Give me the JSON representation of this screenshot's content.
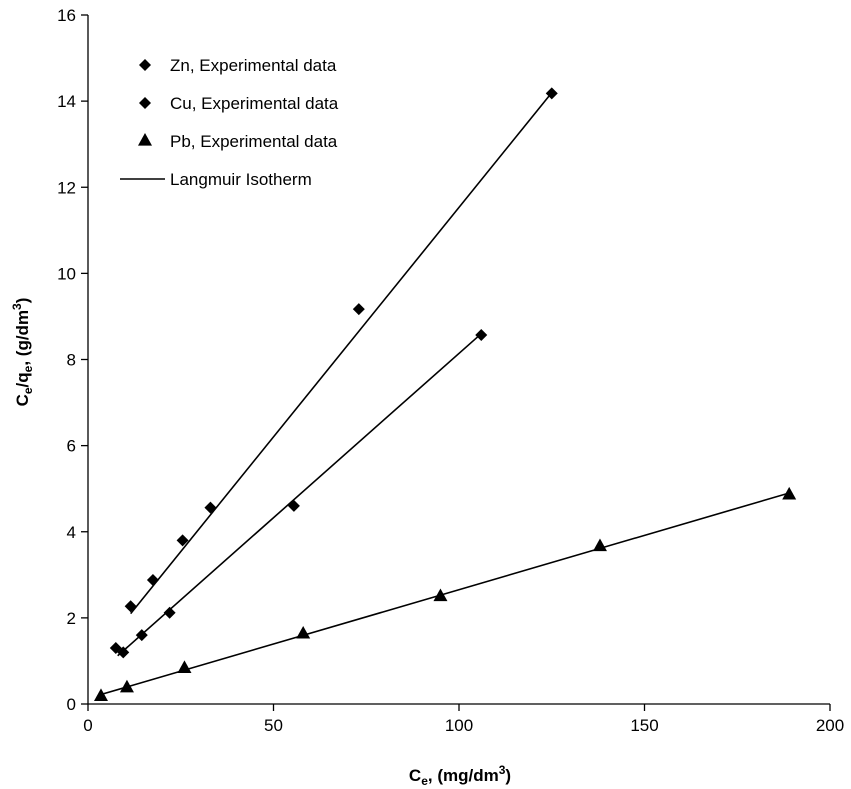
{
  "chart_data": {
    "type": "scatter",
    "title": "",
    "xlabel": {
      "main": "C",
      "sub": "e",
      "rest": ", (mg/dm",
      "sup": "3",
      "end": ")"
    },
    "ylabel": {
      "c": "C",
      "csub": "e",
      "slash": "/q",
      "qsub": "e",
      "rest": ", (g/dm",
      "sup": "3",
      "end": ")"
    },
    "xlim": [
      0,
      200
    ],
    "ylim": [
      0,
      16
    ],
    "xticks": [
      0,
      50,
      100,
      150,
      200
    ],
    "yticks": [
      0,
      2,
      4,
      6,
      8,
      10,
      12,
      14,
      16
    ],
    "xtick_labels": [
      "0",
      "50",
      "100",
      "150",
      "200"
    ],
    "ytick_labels": [
      "0",
      "2",
      "4",
      "6",
      "8",
      "10",
      "12",
      "14",
      "16"
    ],
    "grid": false,
    "legend_position": "top-left",
    "series": [
      {
        "name": "Zn, Experimental data",
        "marker": "diamond",
        "x": [
          11.5,
          17.5,
          25.5,
          33,
          73,
          125
        ],
        "y": [
          2.27,
          2.88,
          3.8,
          4.56,
          9.17,
          14.18
        ],
        "fit": {
          "x": [
            11.5,
            125.5
          ],
          "y": [
            2.1,
            14.25
          ]
        }
      },
      {
        "name": "Cu, Experimental data",
        "marker": "diamond",
        "x": [
          7.5,
          9.5,
          14.5,
          22,
          55.5,
          106
        ],
        "y": [
          1.3,
          1.2,
          1.6,
          2.12,
          4.6,
          8.57
        ],
        "fit": {
          "x": [
            8,
            106
          ],
          "y": [
            1.12,
            8.6
          ]
        }
      },
      {
        "name": "Pb, Experimental data",
        "marker": "triangle",
        "x": [
          3.5,
          10.5,
          26,
          58,
          95,
          138,
          189
        ],
        "y": [
          0.2,
          0.4,
          0.85,
          1.65,
          2.52,
          3.68,
          4.88
        ],
        "fit": {
          "x": [
            3.5,
            189
          ],
          "y": [
            0.22,
            4.9
          ]
        }
      }
    ],
    "fit_legend": "Langmuir Isotherm"
  }
}
